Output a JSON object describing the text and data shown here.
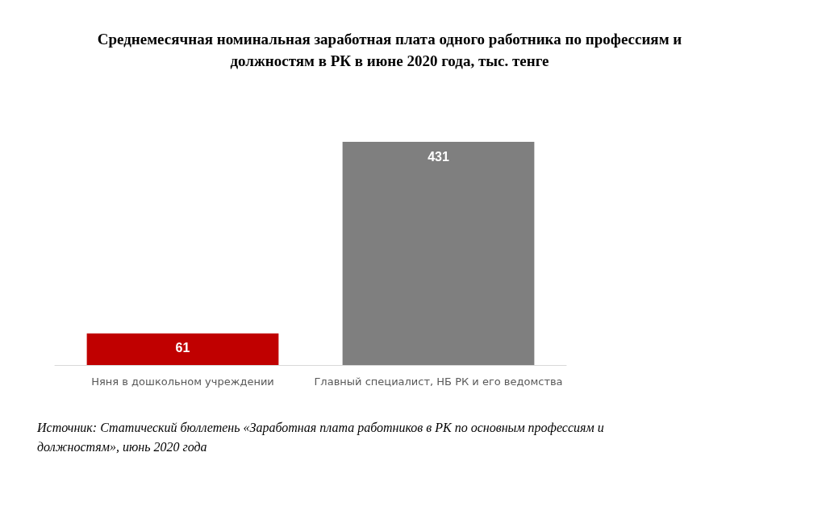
{
  "chart_data": {
    "type": "bar",
    "title": "Среднемесячная номинальная заработная плата одного работника по профессиям и\nдолжностям в РК в июне 2020 года, тыс. тенге",
    "categories": [
      "Няня в дошкольном учреждении",
      "Главный специалист, НБ РК и его ведомства"
    ],
    "values": [
      61,
      431
    ],
    "colors": [
      "#c00000",
      "#7f7f7f"
    ],
    "data_labels": true,
    "annotations": [
      "Источник: Статический бюллетень «Заработная плата работников в РК по основным профессиям и\nдолжностям», июнь 2020 года"
    ]
  }
}
